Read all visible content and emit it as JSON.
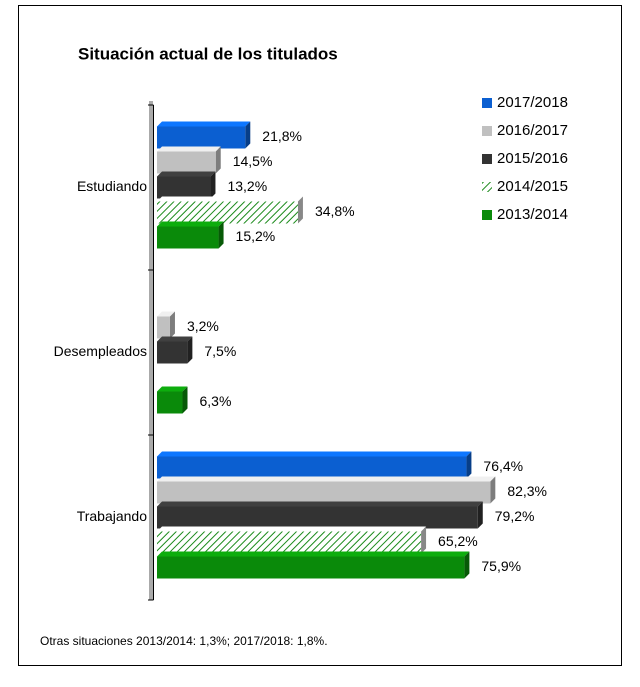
{
  "chart_data": {
    "type": "hbar",
    "title": "Situación actual de los titulados",
    "categories": [
      "Estudiando",
      "Desempleados",
      "Trabajando"
    ],
    "series": [
      {
        "name": "2017/2018",
        "color": "#0b5fd1",
        "values": [
          21.8,
          null,
          76.4
        ],
        "value_labels": [
          "21,8%",
          null,
          "76,4%"
        ]
      },
      {
        "name": "2016/2017",
        "color": "#c0c0c0",
        "values": [
          14.5,
          3.2,
          82.3
        ],
        "value_labels": [
          "14,5%",
          "3,2%",
          "82,3%"
        ]
      },
      {
        "name": "2015/2016",
        "color": "#333333",
        "values": [
          13.2,
          7.5,
          79.2
        ],
        "value_labels": [
          "13,2%",
          "7,5%",
          "79,2%"
        ]
      },
      {
        "name": "2014/2015",
        "color": "#1a8a1a",
        "hatch": true,
        "values": [
          34.8,
          null,
          65.2
        ],
        "value_labels": [
          "34,8%",
          null,
          "65,2%"
        ]
      },
      {
        "name": "2013/2014",
        "color": "#0a8a0a",
        "values": [
          15.2,
          6.3,
          75.9
        ],
        "value_labels": [
          "15,2%",
          "6,3%",
          "75,9%"
        ]
      }
    ],
    "xlim": [
      0,
      100
    ],
    "footnote": "Otras situaciones  2013/2014: 1,3%; 2017/2018: 1,8%."
  }
}
